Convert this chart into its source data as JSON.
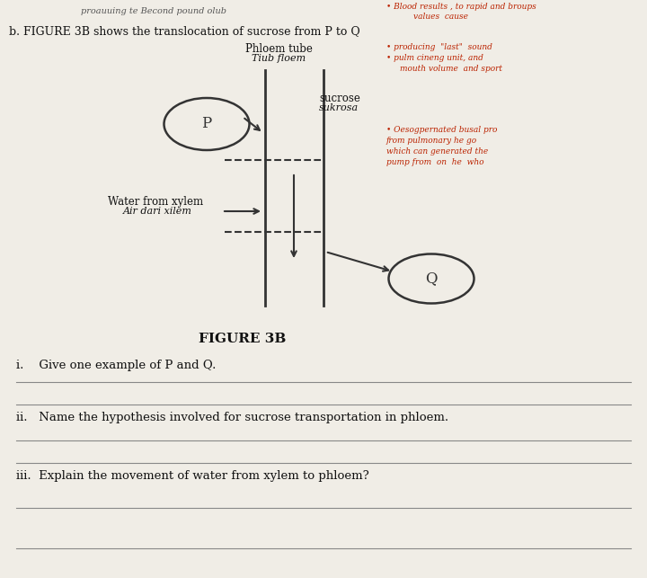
{
  "bg_color": "#e8e4dc",
  "paper_color": "#f0ede6",
  "fig_width": 7.2,
  "fig_height": 6.43,
  "title_top": "b. FIGURE 3B shows the translocation of sucrose from P to Q",
  "figure_label": "FIGURE 3B",
  "phloem_label_line1": "Phloem tube",
  "phloem_label_line2": "Tiub floem",
  "sucrose_label_line1": "sucrose",
  "sucrose_label_line2": "sukrosa",
  "water_label_line1": "Water from xylem",
  "water_label_line2": "Air dari xilem",
  "P_label": "P",
  "Q_label": "Q",
  "question_i": "i.    Give one example of P and Q.",
  "question_ii": "ii.   Name the hypothesis involved for sucrose transportation in phloem.",
  "question_iii": "iii.  Explain the movement of water from xylem to phloem?",
  "handwritten_top": "proauuing te Becond pound olub",
  "red_text_right_1": "• Blood results , to rapid and broups",
  "red_text_right_2": "values  cause",
  "red_text_right_3": "• producing  \"last\"  sound",
  "red_text_right_4": "• pulm cineng unit, and",
  "red_text_right_5": "mouth volume  and sport",
  "red_text_right_6": "• Oesogpernated busal pro",
  "red_text_right_7": "from pulmonary he go",
  "red_text_right_8": "which can generated the",
  "red_text_right_9": "pump from  on  he  who",
  "line_color": "#888888",
  "diagram_color": "#333333"
}
